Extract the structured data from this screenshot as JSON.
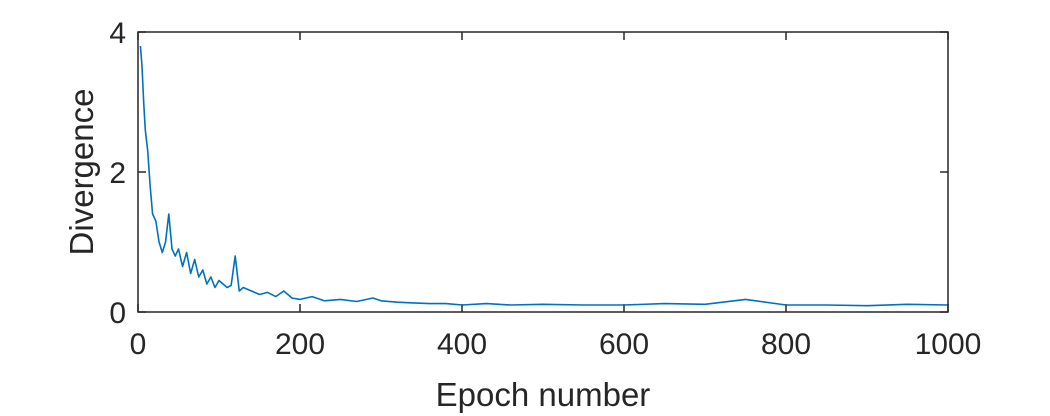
{
  "chart_data": {
    "type": "line",
    "xlabel": "Epoch number",
    "ylabel": "Divergence",
    "xlim": [
      0,
      1000
    ],
    "ylim": [
      0,
      4
    ],
    "xticks": [
      0,
      200,
      400,
      600,
      800,
      1000
    ],
    "yticks": [
      0,
      2,
      4
    ],
    "xtick_labels": [
      "0",
      "200",
      "400",
      "600",
      "800",
      "1000"
    ],
    "ytick_labels": [
      "0",
      "2",
      "4"
    ],
    "grid": false,
    "line_color": "#0072BD",
    "axes_color": "#262626",
    "series": [
      {
        "x": [
          3,
          5,
          7,
          9,
          12,
          15,
          18,
          22,
          26,
          30,
          34,
          38,
          42,
          46,
          50,
          55,
          60,
          65,
          70,
          75,
          80,
          85,
          90,
          95,
          100,
          105,
          110,
          115,
          120,
          125,
          130,
          140,
          150,
          160,
          170,
          180,
          190,
          200,
          215,
          230,
          250,
          270,
          290,
          300,
          320,
          340,
          360,
          380,
          400,
          430,
          460,
          500,
          550,
          600,
          650,
          700,
          750,
          800,
          850,
          900,
          950,
          1000
        ],
        "y": [
          3.8,
          3.5,
          3.0,
          2.6,
          2.3,
          1.8,
          1.4,
          1.3,
          1.0,
          0.85,
          1.0,
          1.4,
          0.9,
          0.8,
          0.9,
          0.65,
          0.85,
          0.55,
          0.75,
          0.5,
          0.6,
          0.4,
          0.5,
          0.35,
          0.45,
          0.4,
          0.35,
          0.38,
          0.8,
          0.3,
          0.35,
          0.3,
          0.25,
          0.28,
          0.22,
          0.3,
          0.2,
          0.18,
          0.22,
          0.16,
          0.18,
          0.15,
          0.2,
          0.16,
          0.14,
          0.13,
          0.12,
          0.12,
          0.1,
          0.12,
          0.1,
          0.11,
          0.1,
          0.1,
          0.12,
          0.11,
          0.18,
          0.1,
          0.1,
          0.09,
          0.11,
          0.1
        ]
      }
    ]
  }
}
